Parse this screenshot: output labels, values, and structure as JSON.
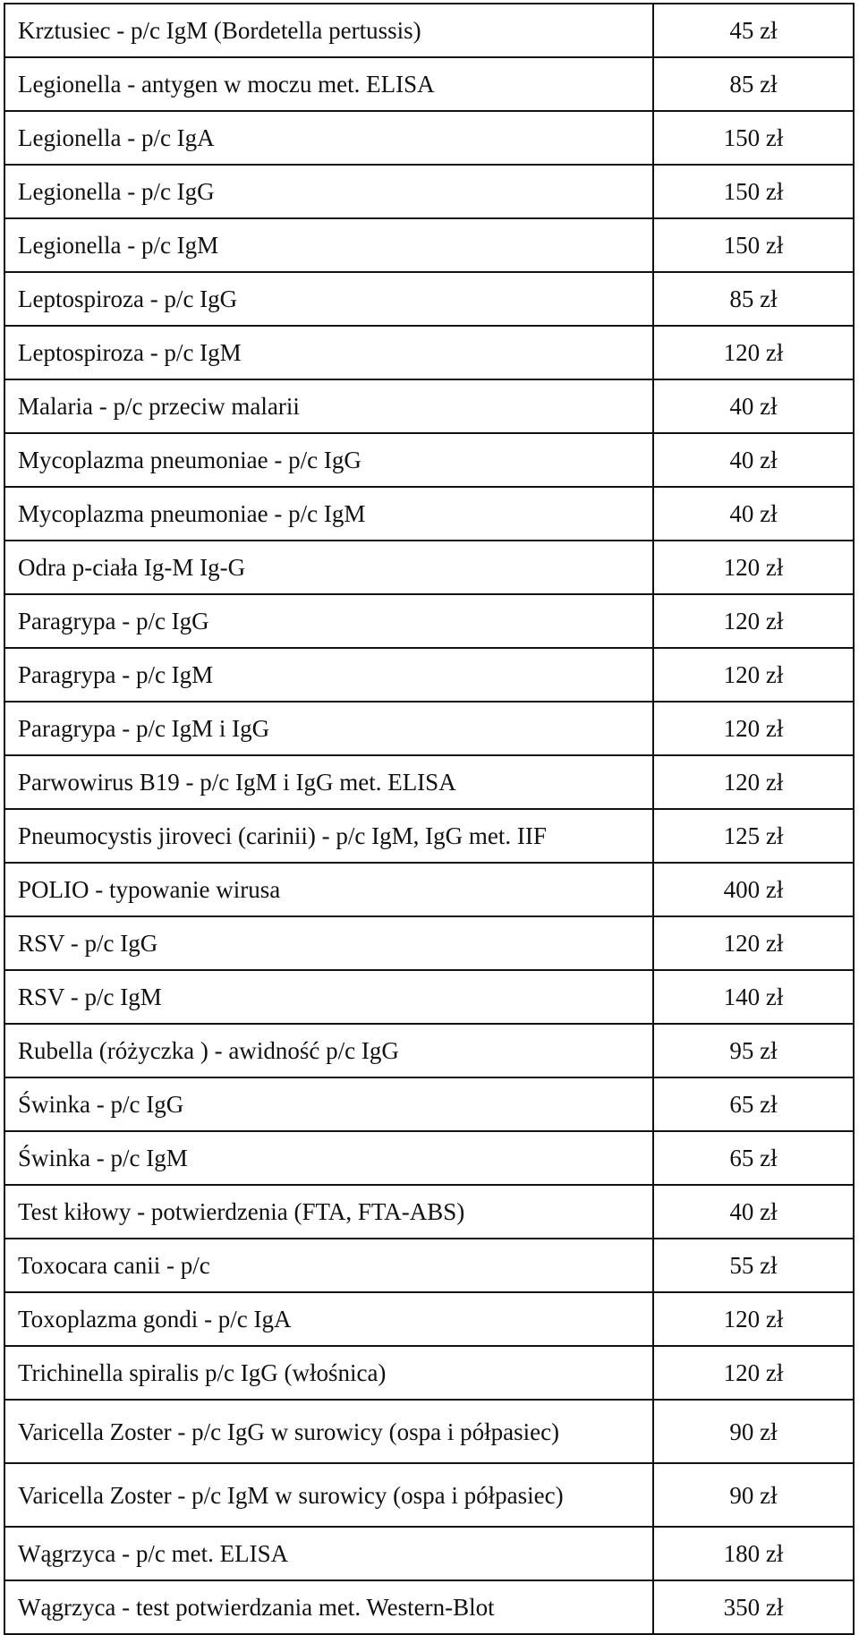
{
  "rows": [
    {
      "name": "Krztusiec - p/c IgM (Bordetella pertussis)",
      "price": "45 zł"
    },
    {
      "name": "Legionella - antygen w moczu met. ELISA",
      "price": "85 zł"
    },
    {
      "name": "Legionella - p/c IgA",
      "price": "150 zł"
    },
    {
      "name": "Legionella - p/c IgG",
      "price": "150 zł"
    },
    {
      "name": "Legionella - p/c IgM",
      "price": "150 zł"
    },
    {
      "name": "Leptospiroza - p/c IgG",
      "price": "85 zł"
    },
    {
      "name": "Leptospiroza - p/c IgM",
      "price": "120 zł"
    },
    {
      "name": "Malaria - p/c przeciw malarii",
      "price": "40 zł"
    },
    {
      "name": "Mycoplazma pneumoniae - p/c IgG",
      "price": "40 zł"
    },
    {
      "name": "Mycoplazma pneumoniae - p/c IgM",
      "price": "40 zł"
    },
    {
      "name": "Odra p-ciała Ig-M Ig-G",
      "price": "120 zł"
    },
    {
      "name": "Paragrypa - p/c IgG",
      "price": "120 zł"
    },
    {
      "name": "Paragrypa - p/c IgM",
      "price": "120 zł"
    },
    {
      "name": "Paragrypa - p/c IgM i IgG",
      "price": "120 zł"
    },
    {
      "name": "Parwowirus B19 - p/c IgM i IgG met. ELISA",
      "price": "120 zł"
    },
    {
      "name": "Pneumocystis jiroveci (carinii) - p/c IgM, IgG met. IIF",
      "price": "125 zł"
    },
    {
      "name": "POLIO - typowanie wirusa",
      "price": "400 zł"
    },
    {
      "name": "RSV - p/c IgG",
      "price": "120 zł"
    },
    {
      "name": "RSV - p/c IgM",
      "price": "140 zł"
    },
    {
      "name": "Rubella (różyczka ) - awidność p/c IgG",
      "price": "95 zł"
    },
    {
      "name": "Świnka - p/c IgG",
      "price": "65 zł"
    },
    {
      "name": "Świnka - p/c IgM",
      "price": "65 zł"
    },
    {
      "name": "Test kiłowy - potwierdzenia (FTA, FTA-ABS)",
      "price": "40 zł"
    },
    {
      "name": "Toxocara canii - p/c",
      "price": "55 zł"
    },
    {
      "name": "Toxoplazma gondi - p/c IgA",
      "price": "120 zł"
    },
    {
      "name": "Trichinella spiralis p/c IgG (włośnica)",
      "price": "120 zł"
    },
    {
      "name": "Varicella Zoster - p/c IgG w surowicy (ospa i półpasiec)",
      "price": "90 zł"
    },
    {
      "name": "Varicella Zoster - p/c IgM w surowicy (ospa i półpasiec)",
      "price": "90 zł"
    },
    {
      "name": "Wągrzyca - p/c met. ELISA",
      "price": "180 zł"
    },
    {
      "name": "Wągrzyca - test potwierdzania met. Western-Blot",
      "price": "350 zł"
    }
  ]
}
